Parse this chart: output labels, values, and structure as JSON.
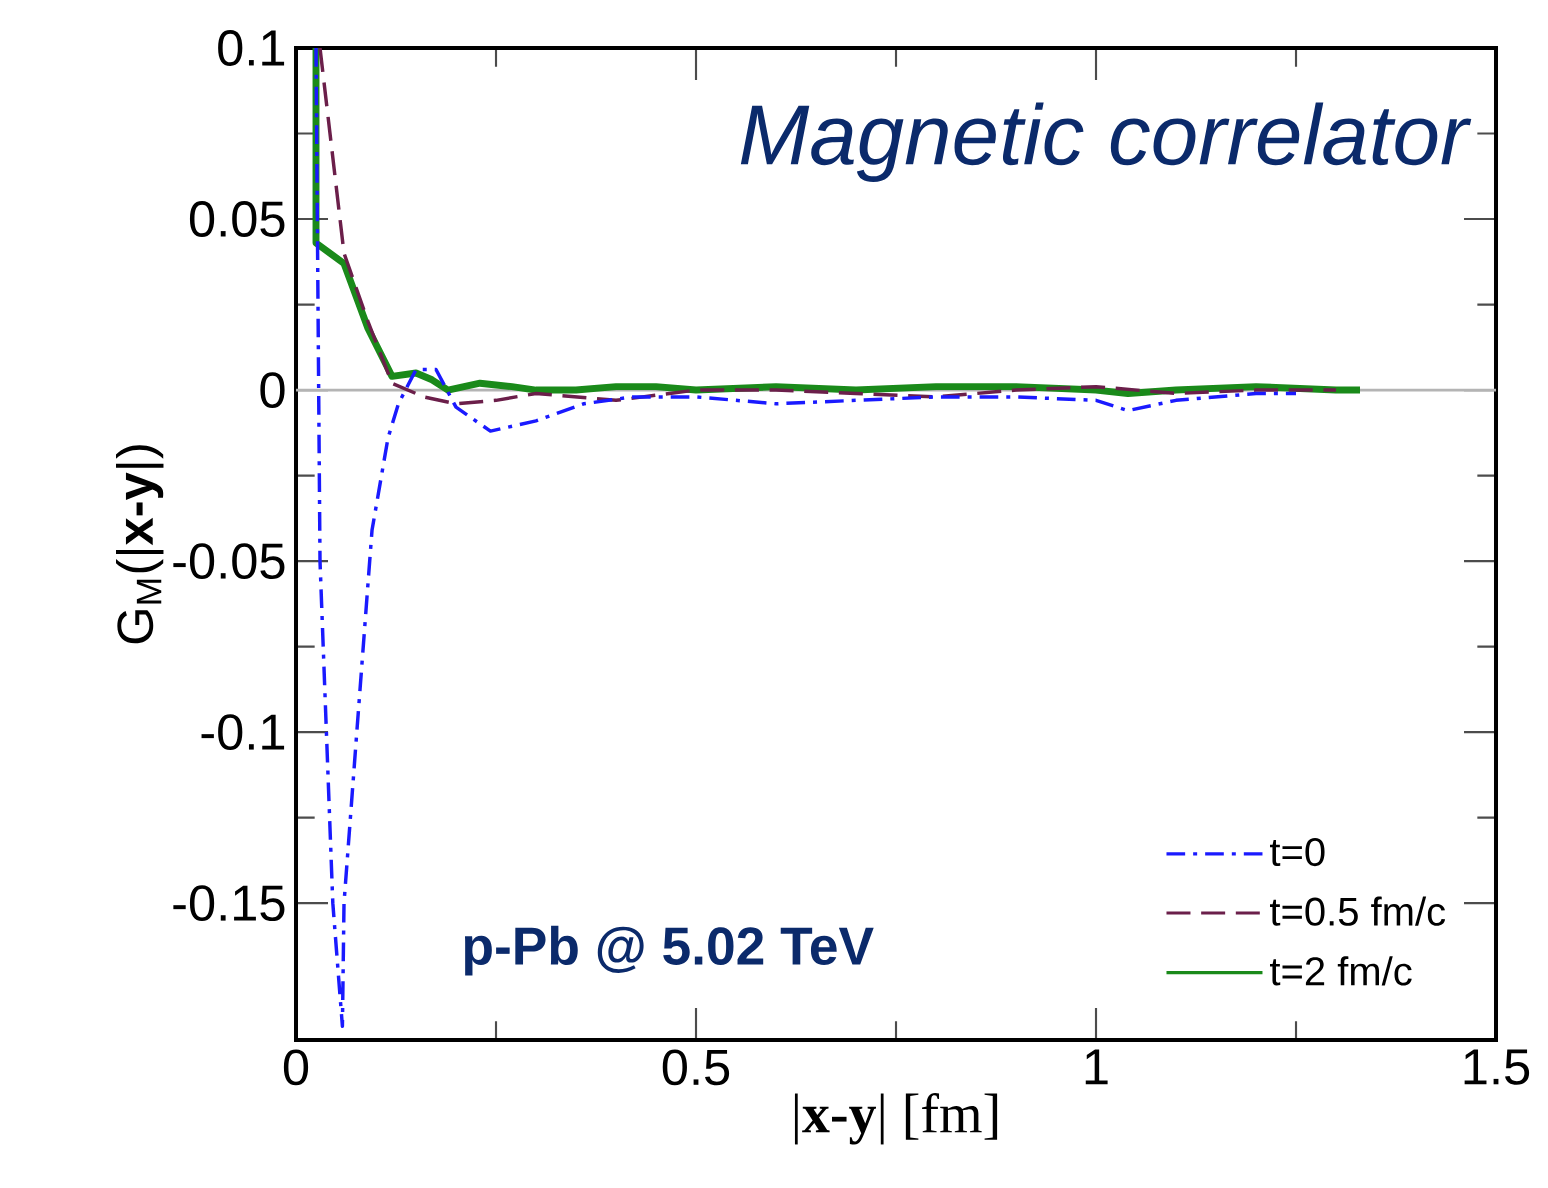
{
  "chart_data": {
    "type": "line",
    "title": "Magnetic correlator",
    "xlabel": "|**x-y**| [fm]",
    "ylabel": "G$_{M}$(|**x-y**|)",
    "annotations": [
      "p-Pb @ 5.02 TeV"
    ],
    "xlim": [
      0,
      1.5
    ],
    "xticks": [
      0,
      0.5,
      1,
      1.5
    ],
    "ylim": [
      -0.19,
      0.1
    ],
    "yticks": [
      -0.15,
      -0.1,
      -0.05,
      0,
      0.05,
      0.1
    ],
    "legend": "bottom right",
    "ref_lines": [
      {
        "axis": "y",
        "value": 0,
        "color": "#b4b4b4"
      }
    ],
    "series": [
      {
        "name": "t=0",
        "color": "#1a1aff",
        "line_style": "dashdot",
        "x": [
          0.025,
          0.03,
          0.046,
          0.058,
          0.06,
          0.076,
          0.095,
          0.115,
          0.128,
          0.15,
          0.175,
          0.2,
          0.243,
          0.3,
          0.36,
          0.42,
          0.5,
          0.6,
          0.7,
          0.8,
          0.9,
          1.0,
          1.04,
          1.1,
          1.2,
          1.25
        ],
        "values": [
          0.1,
          -0.05,
          -0.15,
          -0.186,
          -0.15,
          -0.1,
          -0.041,
          -0.014,
          -0.004,
          0.006,
          0.006,
          -0.005,
          -0.012,
          -0.009,
          -0.004,
          -0.002,
          -0.002,
          -0.004,
          -0.003,
          -0.002,
          -0.002,
          -0.003,
          -0.006,
          -0.003,
          -0.001,
          -0.001
        ]
      },
      {
        "name": "t=0.5 fm/c",
        "color": "#6b1f4a",
        "line_style": "dashed",
        "x": [
          0.03,
          0.06,
          0.09,
          0.12,
          0.16,
          0.2,
          0.25,
          0.3,
          0.4,
          0.5,
          0.6,
          0.7,
          0.8,
          0.9,
          1.0,
          1.1,
          1.2,
          1.3
        ],
        "values": [
          0.1,
          0.04,
          0.02,
          0.002,
          -0.002,
          -0.004,
          -0.003,
          -0.001,
          -0.003,
          0.0,
          0.0,
          -0.001,
          -0.002,
          0.0,
          0.001,
          -0.001,
          0.0,
          0.0
        ]
      },
      {
        "name": "t=2 fm/c",
        "color": "#1a8a1a",
        "line_style": "solid",
        "x": [
          0.025,
          0.025,
          0.06,
          0.09,
          0.12,
          0.15,
          0.17,
          0.19,
          0.23,
          0.27,
          0.3,
          0.35,
          0.4,
          0.45,
          0.5,
          0.6,
          0.7,
          0.8,
          0.9,
          1.0,
          1.04,
          1.1,
          1.2,
          1.3,
          1.33
        ],
        "values": [
          0.1,
          0.043,
          0.037,
          0.018,
          0.004,
          0.005,
          0.003,
          0.0,
          0.002,
          0.001,
          0.0,
          0.0,
          0.001,
          0.001,
          0.0,
          0.001,
          0.0,
          0.001,
          0.001,
          0.0,
          -0.001,
          0.0,
          0.001,
          0.0,
          0.0
        ]
      }
    ]
  }
}
